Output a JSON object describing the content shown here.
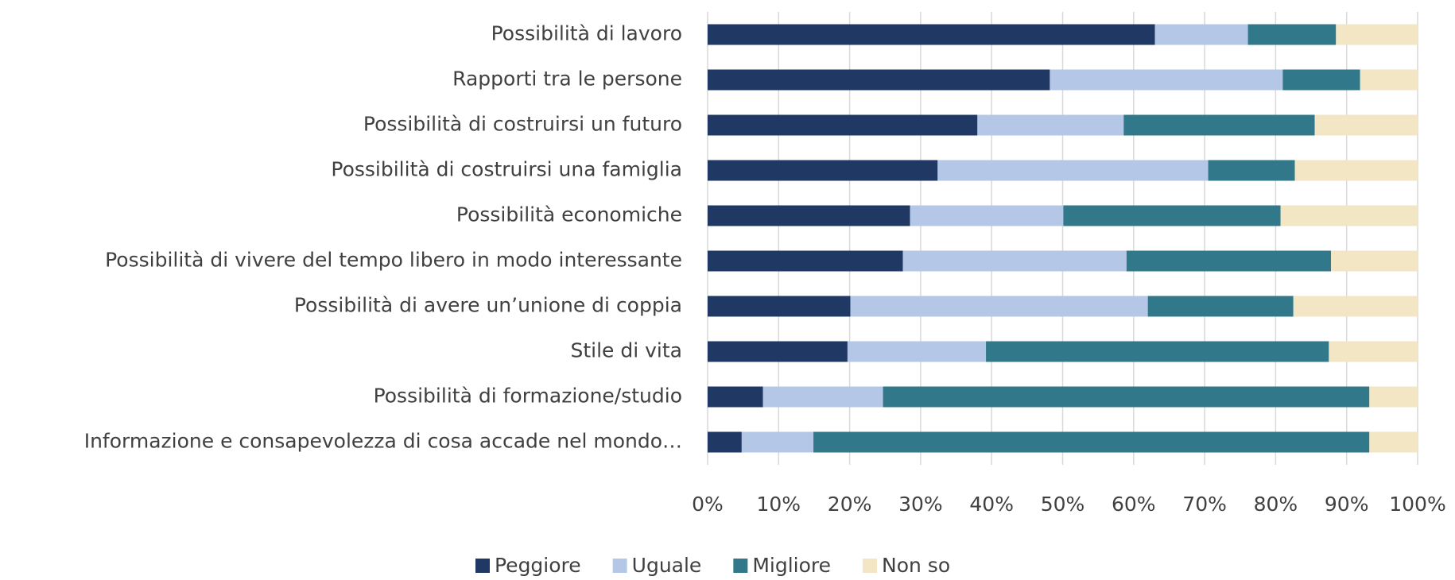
{
  "chart_data": {
    "type": "stacked_barh",
    "categories": [
      "Possibilità di lavoro",
      "Rapporti tra le persone",
      "Possibilità di costruirsi un futuro",
      "Possibilità di costruirsi una famiglia",
      "Possibilità economiche",
      "Possibilità di vivere del tempo libero in modo interessante",
      "Possibilità di avere un’unione di coppia",
      "Stile di vita",
      "Possibilità di formazione/studio",
      "Informazione e consapevolezza di cosa accade nel mondo…"
    ],
    "series": [
      {
        "name": "Peggiore",
        "color": "#1f3864",
        "values": [
          63.0,
          48.2,
          38.0,
          32.4,
          28.5,
          27.5,
          20.1,
          19.7,
          7.8,
          4.8
        ]
      },
      {
        "name": "Uguale",
        "color": "#b4c7e7",
        "values": [
          13.1,
          32.8,
          20.6,
          38.1,
          21.6,
          31.5,
          41.9,
          19.5,
          16.9,
          10.1
        ]
      },
      {
        "name": "Migliore",
        "color": "#31798a",
        "values": [
          12.4,
          10.9,
          26.9,
          12.2,
          30.6,
          28.8,
          20.5,
          48.3,
          68.5,
          78.3
        ]
      },
      {
        "name": "Non so",
        "color": "#f2e6c4",
        "values": [
          11.5,
          8.1,
          14.5,
          17.3,
          19.3,
          12.2,
          17.5,
          12.5,
          6.8,
          6.8
        ]
      }
    ],
    "xlim": [
      0,
      100
    ],
    "xticks": [
      {
        "value": 0,
        "label": "0%"
      },
      {
        "value": 10,
        "label": "10%"
      },
      {
        "value": 20,
        "label": "20%"
      },
      {
        "value": 30,
        "label": "30%"
      },
      {
        "value": 40,
        "label": "40%"
      },
      {
        "value": 50,
        "label": "50%"
      },
      {
        "value": 60,
        "label": "60%"
      },
      {
        "value": 70,
        "label": "70%"
      },
      {
        "value": 80,
        "label": "80%"
      },
      {
        "value": 90,
        "label": "90%"
      },
      {
        "value": 100,
        "label": "100%"
      }
    ],
    "grid": true,
    "legend": "bottom"
  }
}
